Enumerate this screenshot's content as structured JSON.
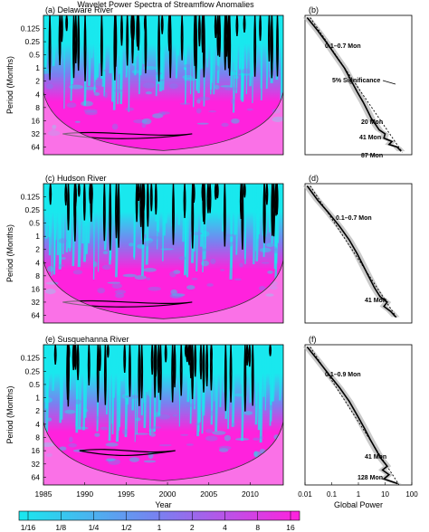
{
  "figure": {
    "title": "Wavelet Power Spectra of Streamflow Anomalies"
  },
  "colors": {
    "low_power": "#19e8ee",
    "mid_power": "#7a80f0",
    "high_power": "#ff22dd",
    "outside_coi": "#f6b2ef",
    "contour": "#000000",
    "significance_line": "#000000",
    "confidence_band": "#bdbdbd"
  },
  "chart_data": [
    {
      "type": "heatmap",
      "panel_label": "(a) Delaware River",
      "ylabel": "Period (Months)",
      "ytick_labels": [
        "0.125",
        "0.25",
        "0.5",
        "1",
        "2",
        "4",
        "8",
        "16",
        "32",
        "64"
      ],
      "xlim": [
        1985,
        2014
      ],
      "y_scale": "log2",
      "ylim": [
        0.0625,
        96
      ],
      "colorscale": "power"
    },
    {
      "type": "line",
      "panel_label": "(b)",
      "x_scale": "log10",
      "xlim": [
        0.01,
        100
      ],
      "series_shape": [
        [
          0.012,
          0.07
        ],
        [
          0.03,
          0.14
        ],
        [
          0.07,
          0.28
        ],
        [
          0.15,
          0.55
        ],
        [
          0.3,
          1
        ],
        [
          0.55,
          2
        ],
        [
          0.9,
          3.5
        ],
        [
          1.5,
          6
        ],
        [
          2.3,
          10
        ],
        [
          3,
          14
        ],
        [
          4.5,
          20
        ],
        [
          6,
          26
        ],
        [
          10,
          32
        ],
        [
          9,
          40
        ],
        [
          18,
          48
        ],
        [
          14,
          56
        ],
        [
          28,
          64
        ],
        [
          40,
          80
        ]
      ],
      "annotations": [
        {
          "text": "0.1–0.7 Mon"
        },
        {
          "text": "5% Significance"
        },
        {
          "text": "20 Mon"
        },
        {
          "text": "41 Mon"
        },
        {
          "text": "87 Mon"
        }
      ]
    },
    {
      "type": "heatmap",
      "panel_label": "(c) Hudson River",
      "ylabel": "Period (Months)",
      "ytick_labels": [
        "0.125",
        "0.25",
        "0.5",
        "1",
        "2",
        "4",
        "8",
        "16",
        "32",
        "64"
      ],
      "xlim": [
        1985,
        2014
      ],
      "y_scale": "log2",
      "ylim": [
        0.0625,
        96
      ],
      "colorscale": "power"
    },
    {
      "type": "line",
      "panel_label": "(d)",
      "x_scale": "log10",
      "xlim": [
        0.01,
        100
      ],
      "series_shape": [
        [
          0.012,
          0.07
        ],
        [
          0.03,
          0.15
        ],
        [
          0.08,
          0.3
        ],
        [
          0.2,
          0.6
        ],
        [
          0.45,
          1.2
        ],
        [
          0.9,
          2.5
        ],
        [
          1.6,
          5
        ],
        [
          2.6,
          9
        ],
        [
          4,
          15
        ],
        [
          6.5,
          24
        ],
        [
          12,
          32
        ],
        [
          9,
          40
        ],
        [
          16,
          52
        ],
        [
          25,
          70
        ]
      ],
      "annotations": [
        {
          "text": "0.1–0.7 Mon"
        },
        {
          "text": "41 Mon"
        }
      ]
    },
    {
      "type": "heatmap",
      "panel_label": "(e) Susquehanna River",
      "ylabel": "Period (Months)",
      "ytick_labels": [
        "0.125",
        "0.25",
        "0.5",
        "1",
        "2",
        "4",
        "8",
        "16",
        "32",
        "64"
      ],
      "xlim": [
        1985,
        2014
      ],
      "x_ticks": [
        1985,
        1990,
        1995,
        2000,
        2005,
        2010
      ],
      "xlabel": "Year",
      "y_scale": "log2",
      "ylim": [
        0.0625,
        96
      ],
      "colorscale": "power"
    },
    {
      "type": "line",
      "panel_label": "(f)",
      "x_scale": "log10",
      "xlim": [
        0.01,
        100
      ],
      "x_tick_labels": [
        "0.01",
        "0.1",
        "1",
        "10",
        "100"
      ],
      "xlabel": "Global Power",
      "series_shape": [
        [
          0.012,
          0.07
        ],
        [
          0.03,
          0.14
        ],
        [
          0.08,
          0.3
        ],
        [
          0.2,
          0.6
        ],
        [
          0.45,
          1.2
        ],
        [
          0.9,
          2.5
        ],
        [
          1.7,
          5
        ],
        [
          2.8,
          9
        ],
        [
          4.5,
          15
        ],
        [
          7,
          24
        ],
        [
          12,
          36
        ],
        [
          8,
          44
        ],
        [
          14,
          56
        ],
        [
          9,
          70
        ],
        [
          30,
          90
        ]
      ],
      "annotations": [
        {
          "text": "0.1–0.9 Mon"
        },
        {
          "text": "41 Mon"
        },
        {
          "text": "128 Mon"
        }
      ]
    }
  ],
  "colorbar": {
    "tick_labels": [
      "1/16",
      "1/8",
      "1/4",
      "1/2",
      "1",
      "2",
      "4",
      "8",
      "16"
    ]
  }
}
